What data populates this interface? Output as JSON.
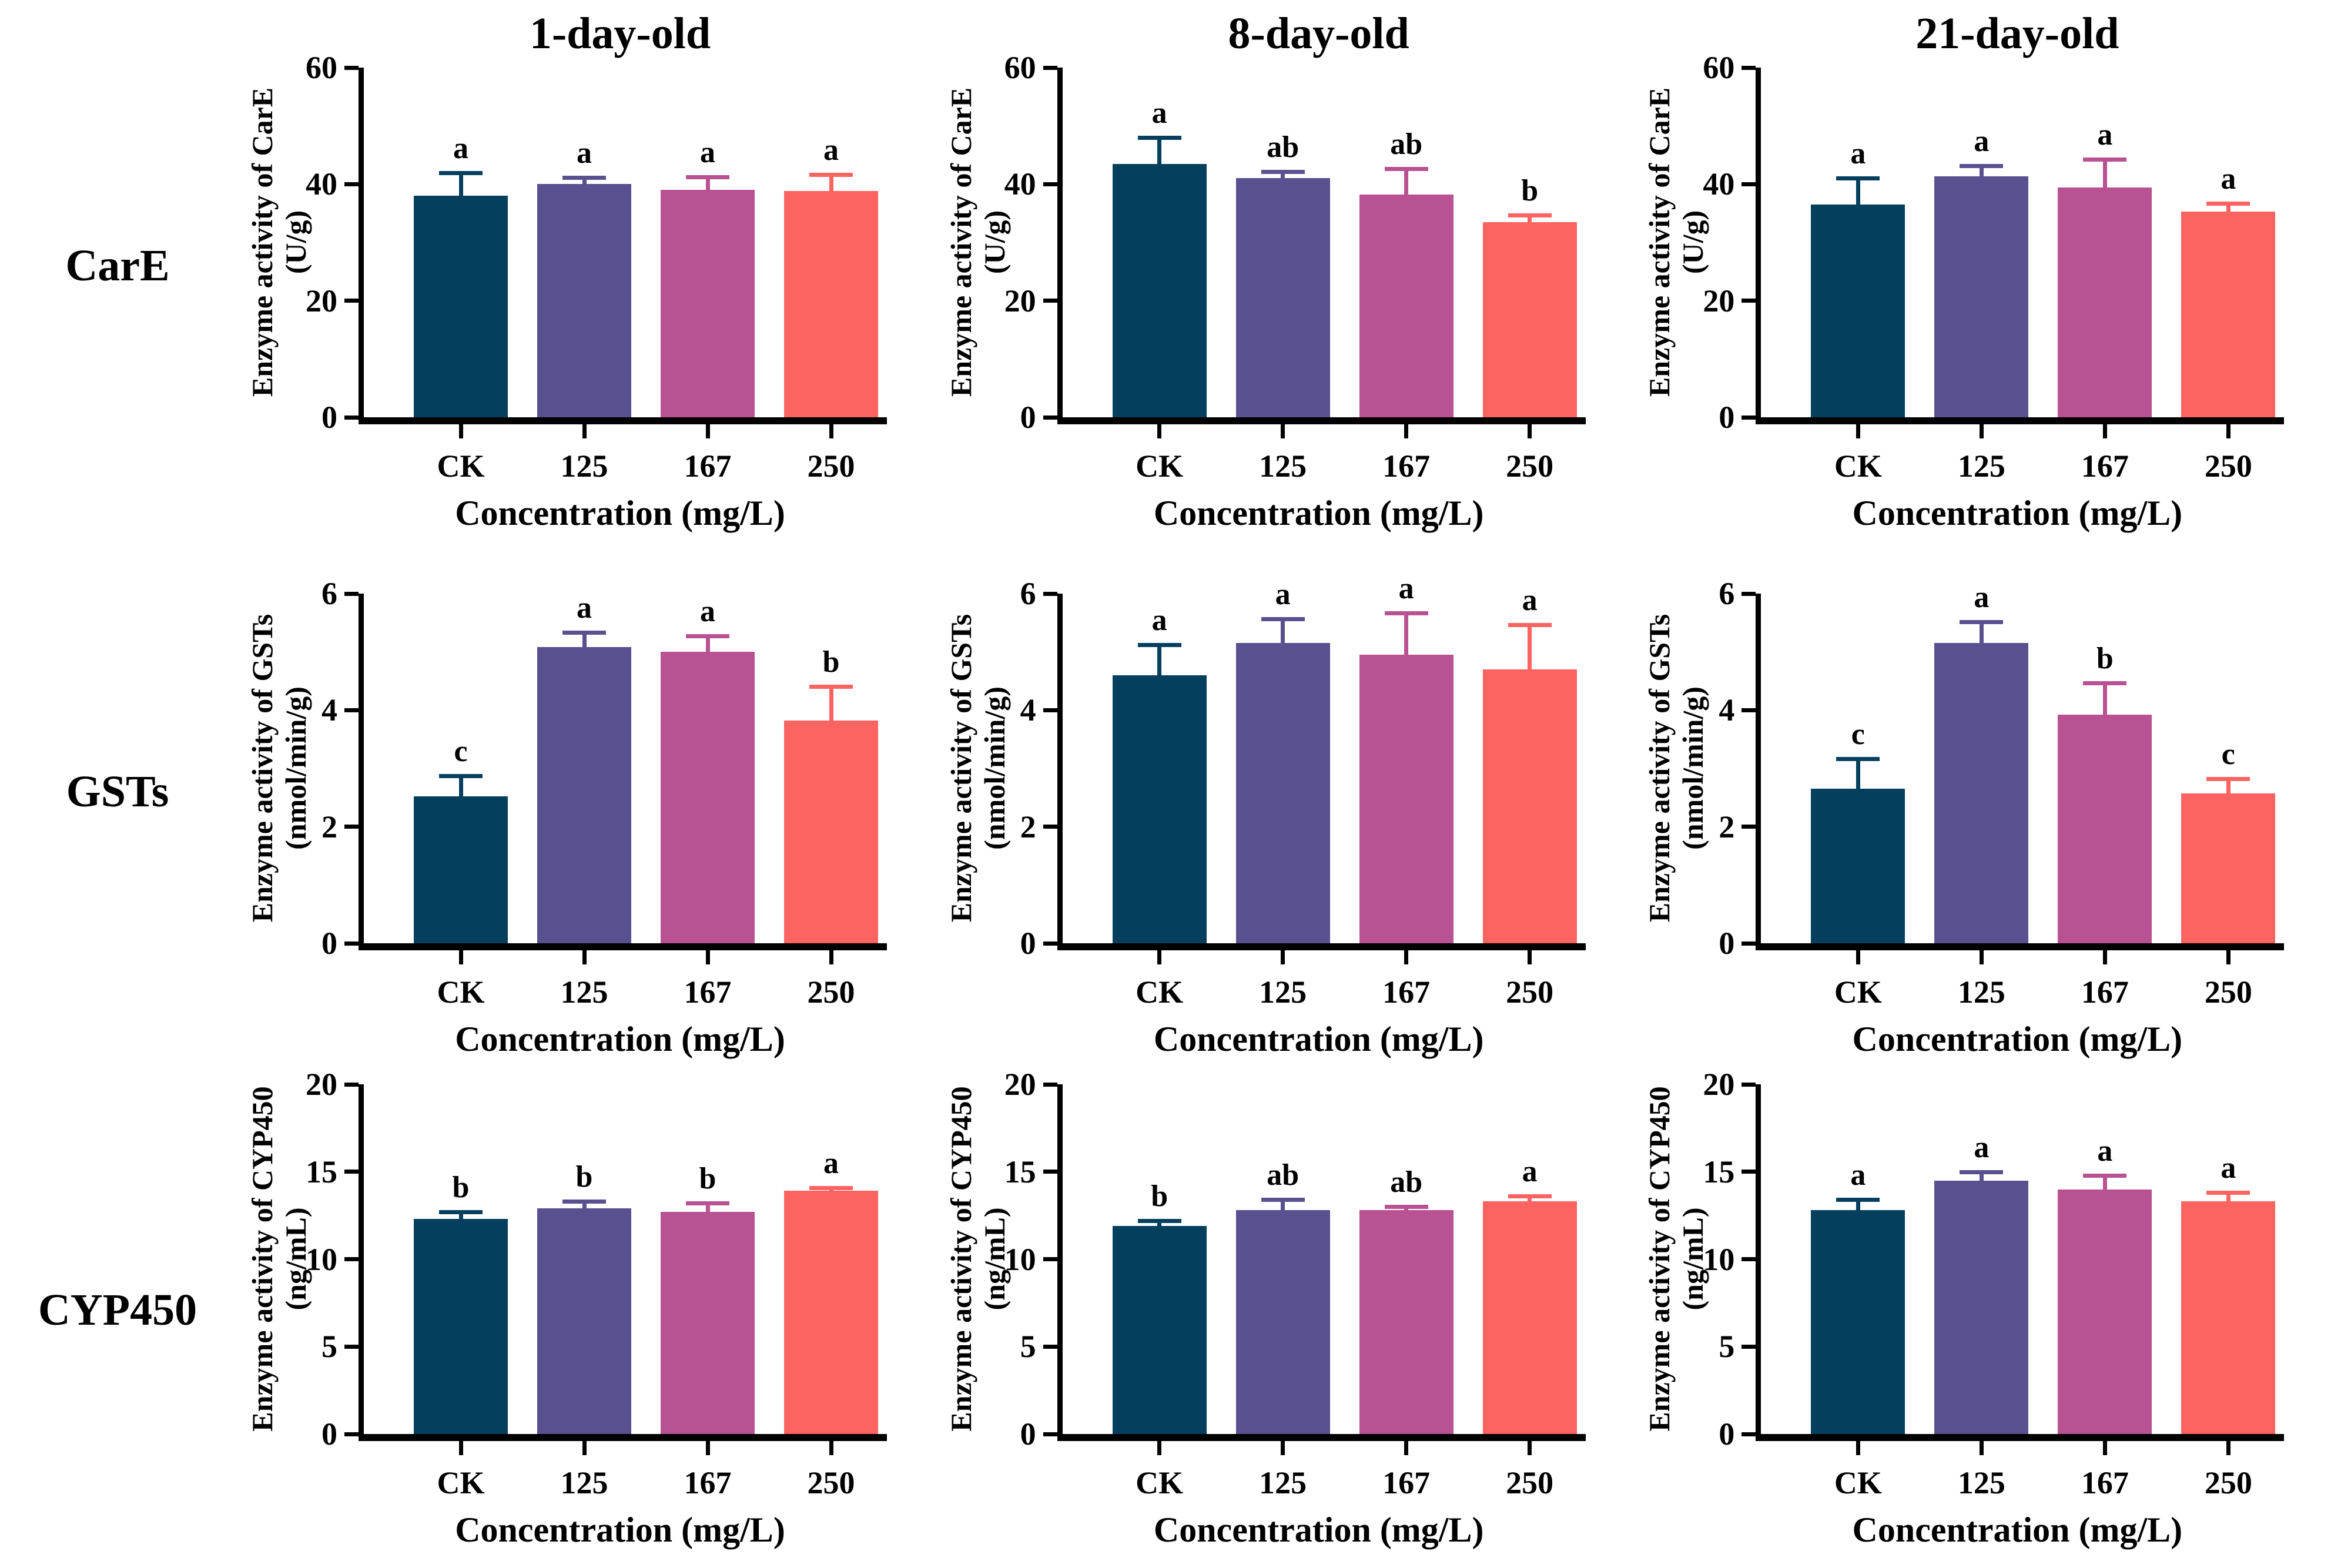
{
  "layout": {
    "row_labels": [
      "CarE",
      "GSTs",
      "CYP450"
    ],
    "column_titles": [
      "1-day-old",
      "8-day-old",
      "21-day-old"
    ]
  },
  "colors": {
    "bars": [
      "#04405E",
      "#59508F",
      "#B85292",
      "#FC6462"
    ],
    "axis": "#000000",
    "letter": "#000000",
    "background": "#FFFFFF"
  },
  "chart_data": [
    {
      "type": "bar",
      "title": "1-day-old",
      "row": "CarE",
      "ylabel": "Enzyme activity of CarE",
      "ylabel_unit": "(U/g)",
      "xlabel": "Concentration (mg/L)",
      "categories": [
        "CK",
        "125",
        "167",
        "250"
      ],
      "values": [
        38,
        40,
        39,
        38.8
      ],
      "errors": [
        4.3,
        1.4,
        2.5,
        3.2
      ],
      "sig_letters": [
        "a",
        "a",
        "a",
        "a"
      ],
      "ylim": [
        0,
        60
      ],
      "yticks": [
        0,
        20,
        40,
        60
      ],
      "grid": false,
      "legend": false
    },
    {
      "type": "bar",
      "title": "8-day-old",
      "row": "CarE",
      "ylabel": "Enzyme activity of CarE",
      "ylabel_unit": "(U/g)",
      "xlabel": "Concentration (mg/L)",
      "categories": [
        "CK",
        "125",
        "167",
        "250"
      ],
      "values": [
        43.5,
        41,
        38.2,
        33.5
      ],
      "errors": [
        4.8,
        1.5,
        4.8,
        1.5
      ],
      "sig_letters": [
        "a",
        "ab",
        "ab",
        "b"
      ],
      "ylim": [
        0,
        60
      ],
      "yticks": [
        0,
        20,
        40,
        60
      ],
      "grid": false,
      "legend": false
    },
    {
      "type": "bar",
      "title": "21-day-old",
      "row": "CarE",
      "ylabel": "Enzyme activity of CarE",
      "ylabel_unit": "(U/g)",
      "xlabel": "Concentration (mg/L)",
      "categories": [
        "CK",
        "125",
        "167",
        "250"
      ],
      "values": [
        36.5,
        41.3,
        39.4,
        35.3
      ],
      "errors": [
        4.8,
        2.2,
        5.2,
        1.7
      ],
      "sig_letters": [
        "a",
        "a",
        "a",
        "a"
      ],
      "ylim": [
        0,
        60
      ],
      "yticks": [
        0,
        20,
        40,
        60
      ],
      "grid": false,
      "legend": false
    },
    {
      "type": "bar",
      "title": "",
      "row": "GSTs",
      "ylabel": "Enzyme activity of GSTs",
      "ylabel_unit": "(nmol/min/g)",
      "xlabel": "Concentration (mg/L)",
      "categories": [
        "CK",
        "125",
        "167",
        "250"
      ],
      "values": [
        2.52,
        5.08,
        5.0,
        3.82
      ],
      "errors": [
        0.38,
        0.28,
        0.3,
        0.62
      ],
      "sig_letters": [
        "c",
        "a",
        "a",
        "b"
      ],
      "ylim": [
        0,
        6
      ],
      "yticks": [
        0,
        2,
        4,
        6
      ],
      "grid": false,
      "legend": false
    },
    {
      "type": "bar",
      "title": "",
      "row": "GSTs",
      "ylabel": "Enzyme activity of GSTs",
      "ylabel_unit": "(nmol/min/g)",
      "xlabel": "Concentration (mg/L)",
      "categories": [
        "CK",
        "125",
        "167",
        "250"
      ],
      "values": [
        4.6,
        5.15,
        4.95,
        4.7
      ],
      "errors": [
        0.55,
        0.45,
        0.75,
        0.8
      ],
      "sig_letters": [
        "a",
        "a",
        "a",
        "a"
      ],
      "ylim": [
        0,
        6
      ],
      "yticks": [
        0,
        2,
        4,
        6
      ],
      "grid": false,
      "legend": false
    },
    {
      "type": "bar",
      "title": "",
      "row": "GSTs",
      "ylabel": "Enzyme activity of GSTs",
      "ylabel_unit": "(nmol/min/g)",
      "xlabel": "Concentration (mg/L)",
      "categories": [
        "CK",
        "125",
        "167",
        "250"
      ],
      "values": [
        2.65,
        5.15,
        3.92,
        2.57
      ],
      "errors": [
        0.55,
        0.4,
        0.58,
        0.28
      ],
      "sig_letters": [
        "c",
        "a",
        "b",
        "c"
      ],
      "ylim": [
        0,
        6
      ],
      "yticks": [
        0,
        2,
        4,
        6
      ],
      "grid": false,
      "legend": false
    },
    {
      "type": "bar",
      "title": "",
      "row": "CYP450",
      "ylabel": "Enzyme activity of CYP450",
      "ylabel_unit": "(ng/mL)",
      "xlabel": "Concentration (mg/L)",
      "categories": [
        "CK",
        "125",
        "167",
        "250"
      ],
      "values": [
        12.3,
        12.9,
        12.7,
        13.9
      ],
      "errors": [
        0.5,
        0.5,
        0.6,
        0.3
      ],
      "sig_letters": [
        "b",
        "b",
        "b",
        "a"
      ],
      "ylim": [
        0,
        20
      ],
      "yticks": [
        0,
        5,
        10,
        15,
        20
      ],
      "grid": false,
      "legend": false
    },
    {
      "type": "bar",
      "title": "",
      "row": "CYP450",
      "ylabel": "Enzyme activity of CYP450",
      "ylabel_unit": "(ng/mL)",
      "xlabel": "Concentration (mg/L)",
      "categories": [
        "CK",
        "125",
        "167",
        "250"
      ],
      "values": [
        11.9,
        12.8,
        12.8,
        13.3
      ],
      "errors": [
        0.4,
        0.7,
        0.3,
        0.4
      ],
      "sig_letters": [
        "b",
        "ab",
        "ab",
        "a"
      ],
      "ylim": [
        0,
        20
      ],
      "yticks": [
        0,
        5,
        10,
        15,
        20
      ],
      "grid": false,
      "legend": false
    },
    {
      "type": "bar",
      "title": "",
      "row": "CYP450",
      "ylabel": "Enzyme activity of CYP450",
      "ylabel_unit": "(ng/mL)",
      "xlabel": "Concentration (mg/L)",
      "categories": [
        "CK",
        "125",
        "167",
        "250"
      ],
      "values": [
        12.8,
        14.5,
        14.0,
        13.3
      ],
      "errors": [
        0.7,
        0.6,
        0.9,
        0.6
      ],
      "sig_letters": [
        "a",
        "a",
        "a",
        "a"
      ],
      "ylim": [
        0,
        20
      ],
      "yticks": [
        0,
        5,
        10,
        15,
        20
      ],
      "grid": false,
      "legend": false
    }
  ]
}
